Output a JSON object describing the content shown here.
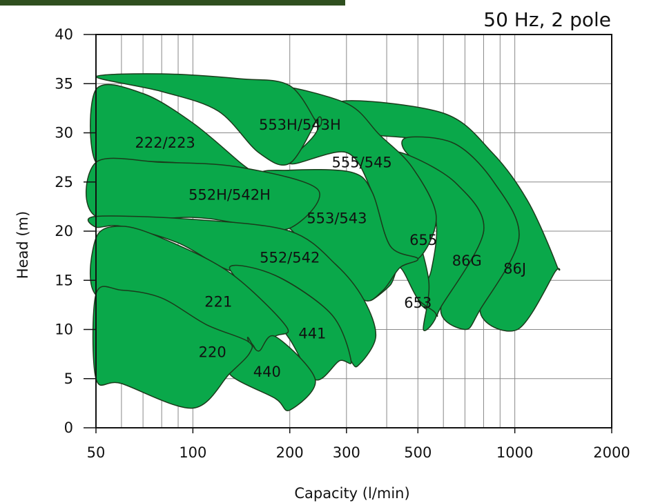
{
  "chart_data": {
    "type": "area",
    "title": "",
    "subtitle": "50 Hz, 2 pole",
    "xlabel": "Capacity (l/min)",
    "ylabel": "Head (m)",
    "x_scale": "log",
    "xlim": [
      50,
      2000
    ],
    "ylim": [
      0,
      40
    ],
    "x_ticks": [
      50,
      100,
      200,
      300,
      500,
      1000,
      2000
    ],
    "x_tick_labels": [
      "50",
      "100",
      "200",
      "300",
      "500",
      "1000",
      "2000"
    ],
    "x_minor_gridlines": [
      60,
      70,
      80,
      90,
      400,
      600,
      700,
      800,
      900
    ],
    "y_ticks": [
      0,
      5,
      10,
      15,
      20,
      25,
      30,
      35,
      40
    ],
    "y_tick_labels": [
      "0",
      "5",
      "10",
      "15",
      "20",
      "25",
      "30",
      "35",
      "40"
    ],
    "grid": true,
    "colors": {
      "region_fill": "#0aa84a",
      "region_stroke": "#1b3a1b",
      "header_band": "#2f4f1f",
      "grid": "#888888"
    },
    "regions": [
      {
        "name": "86J",
        "label_at": [
          1000,
          15.7
        ],
        "boundary": [
          [
            290,
            33.2
          ],
          [
            600,
            32
          ],
          [
            850,
            28
          ],
          [
            1100,
            23
          ],
          [
            1350,
            16.5
          ],
          [
            1330,
            15.8
          ],
          [
            1020,
            10
          ],
          [
            780,
            12
          ],
          [
            1030,
            19.3
          ],
          [
            860,
            25
          ],
          [
            650,
            28.9
          ],
          [
            460,
            29.5
          ],
          [
            330,
            30.2
          ]
        ]
      },
      {
        "name": "86G",
        "label_at": [
          710,
          16.5
        ],
        "boundary": [
          [
            460,
            29.5
          ],
          [
            650,
            28.9
          ],
          [
            860,
            25
          ],
          [
            1030,
            19.3
          ],
          [
            780,
            12
          ],
          [
            700,
            10
          ],
          [
            590,
            12.3
          ],
          [
            800,
            20
          ],
          [
            660,
            24.8
          ],
          [
            470,
            27.7
          ]
        ]
      },
      {
        "name": "655",
        "label_at": [
          520,
          18.6
        ],
        "boundary": [
          [
            470,
            27.7
          ],
          [
            660,
            24.8
          ],
          [
            800,
            20
          ],
          [
            590,
            12.3
          ],
          [
            570,
            11.5
          ],
          [
            500,
            13.1
          ],
          [
            550,
            16
          ],
          [
            565,
            21.5
          ],
          [
            450,
            25.8
          ],
          [
            380,
            28.1
          ]
        ]
      },
      {
        "name": "653",
        "label_at": [
          500,
          12.2
        ],
        "boundary": [
          [
            500,
            13.1
          ],
          [
            440,
            16.3
          ],
          [
            410,
            14.5
          ],
          [
            355,
            13
          ],
          [
            430,
            16.8
          ],
          [
            460,
            19
          ],
          [
            470,
            22
          ],
          [
            540,
            15
          ],
          [
            520,
            10
          ],
          [
            570,
            11.5
          ]
        ]
      },
      {
        "name": "555/545",
        "label_at": [
          335,
          26.5
        ],
        "boundary": [
          [
            180,
            34.7
          ],
          [
            300,
            33
          ],
          [
            380,
            29.8
          ],
          [
            480,
            26.5
          ],
          [
            570,
            21.5
          ],
          [
            500,
            17.2
          ],
          [
            410,
            18.5
          ],
          [
            360,
            24
          ],
          [
            300,
            28
          ],
          [
            200,
            26.9
          ],
          [
            245,
            30.8
          ]
        ]
      },
      {
        "name": "553H/543H",
        "label_at": [
          215,
          30.3
        ],
        "boundary": [
          [
            50,
            35.7
          ],
          [
            80,
            36
          ],
          [
            140,
            35.5
          ],
          [
            200,
            34.8
          ],
          [
            245,
            30.8
          ],
          [
            245,
            31.5
          ],
          [
            200,
            26.9
          ],
          [
            160,
            28
          ],
          [
            120,
            32.2
          ],
          [
            80,
            34.2
          ]
        ]
      },
      {
        "name": "222/223",
        "label_at": [
          82,
          28.5
        ],
        "boundary": [
          [
            50,
            34.4
          ],
          [
            70,
            34
          ],
          [
            100,
            31
          ],
          [
            140,
            27
          ],
          [
            160,
            25.5
          ],
          [
            140,
            25.8
          ],
          [
            100,
            26.8
          ],
          [
            70,
            27.1
          ],
          [
            50,
            27
          ]
        ]
      },
      {
        "name": "553/543",
        "label_at": [
          280,
          20.8
        ],
        "boundary": [
          [
            160,
            25.5
          ],
          [
            200,
            26.2
          ],
          [
            310,
            26
          ],
          [
            360,
            24
          ],
          [
            410,
            18.5
          ],
          [
            500,
            17.2
          ],
          [
            440,
            16.3
          ],
          [
            390,
            14
          ],
          [
            340,
            13
          ],
          [
            280,
            16.5
          ],
          [
            200,
            20.3
          ]
        ]
      },
      {
        "name": "552H/542H",
        "label_at": [
          130,
          23.2
        ],
        "boundary": [
          [
            50,
            27
          ],
          [
            80,
            27
          ],
          [
            140,
            26.5
          ],
          [
            245,
            24.2
          ],
          [
            200,
            20.3
          ],
          [
            140,
            20.8
          ],
          [
            100,
            21.4
          ],
          [
            50,
            21.5
          ]
        ]
      },
      {
        "name": "552/542",
        "label_at": [
          200,
          16.8
        ],
        "boundary": [
          [
            50,
            21.5
          ],
          [
            100,
            21.2
          ],
          [
            200,
            20
          ],
          [
            280,
            16.5
          ],
          [
            340,
            13
          ],
          [
            370,
            9.3
          ],
          [
            330,
            6.5
          ],
          [
            310,
            6.8
          ],
          [
            270,
            11.5
          ],
          [
            180,
            15.5
          ],
          [
            130,
            16
          ],
          [
            90,
            18.8
          ],
          [
            60,
            20.5
          ],
          [
            50,
            20.4
          ]
        ]
      },
      {
        "name": "441",
        "label_at": [
          235,
          9.1
        ],
        "boundary": [
          [
            130,
            16.3
          ],
          [
            180,
            15.5
          ],
          [
            270,
            11.5
          ],
          [
            310,
            6.8
          ],
          [
            285,
            6.8
          ],
          [
            240,
            4.9
          ],
          [
            200,
            9
          ],
          [
            170,
            12
          ]
        ]
      },
      {
        "name": "221",
        "label_at": [
          120,
          12.3
        ],
        "boundary": [
          [
            50,
            19.3
          ],
          [
            60,
            20.5
          ],
          [
            80,
            19.3
          ],
          [
            130,
            15.8
          ],
          [
            195,
            10.3
          ],
          [
            180,
            9.3
          ],
          [
            160,
            7.8
          ],
          [
            148,
            8.8
          ],
          [
            110,
            9.8
          ],
          [
            80,
            12
          ],
          [
            50,
            13.5
          ]
        ]
      },
      {
        "name": "440",
        "label_at": [
          170,
          5.2
        ],
        "boundary": [
          [
            148,
            9.2
          ],
          [
            160,
            7.8
          ],
          [
            180,
            9.3
          ],
          [
            240,
            4.9
          ],
          [
            200,
            1.8
          ],
          [
            180,
            3
          ],
          [
            130,
            5.5
          ],
          [
            150,
            7.6
          ]
        ]
      },
      {
        "name": "220",
        "label_at": [
          115,
          7.2
        ],
        "boundary": [
          [
            50,
            13.6
          ],
          [
            60,
            14
          ],
          [
            80,
            13.2
          ],
          [
            110,
            10.5
          ],
          [
            148,
            8.8
          ],
          [
            150,
            7.6
          ],
          [
            130,
            5.5
          ],
          [
            100,
            2
          ],
          [
            60,
            4.5
          ],
          [
            50,
            5
          ]
        ]
      }
    ]
  }
}
